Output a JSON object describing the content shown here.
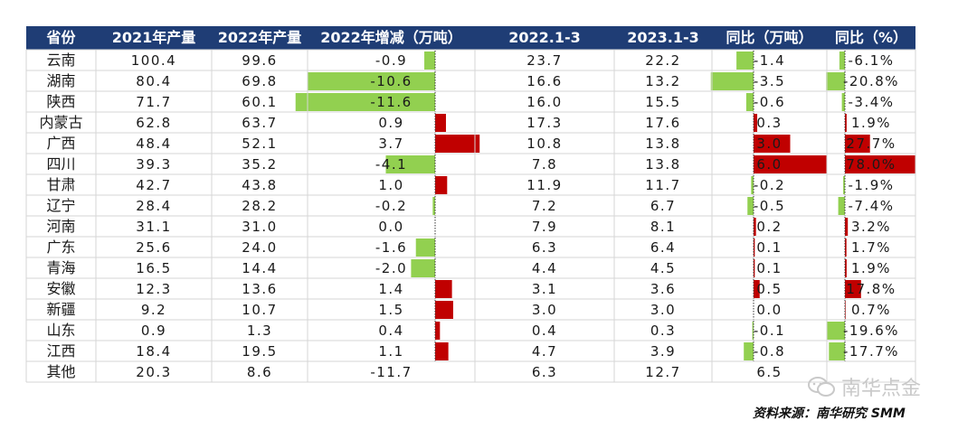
{
  "chart_data": {
    "type": "table",
    "columns": [
      "省份",
      "2021年产量",
      "2022年产量",
      "2022年增减（万吨）",
      "2022.1-3",
      "2023.1-3",
      "同比（万吨）",
      "同比（%）"
    ],
    "rows": [
      {
        "province": "云南",
        "y2021": "100.4",
        "y2022": "99.6",
        "change": "-0.9",
        "q2022": "23.7",
        "q2023": "22.2",
        "yoy_t": "-1.4",
        "yoy_pct": "-6.1%",
        "change_val": -0.9,
        "yoy_t_val": -1.4,
        "yoy_pct_val": -6.1
      },
      {
        "province": "湖南",
        "y2021": "80.4",
        "y2022": "69.8",
        "change": "-10.6",
        "q2022": "16.6",
        "q2023": "13.2",
        "yoy_t": "-3.5",
        "yoy_pct": "-20.8%",
        "change_val": -10.6,
        "yoy_t_val": -3.5,
        "yoy_pct_val": -20.8
      },
      {
        "province": "陕西",
        "y2021": "71.7",
        "y2022": "60.1",
        "change": "-11.6",
        "q2022": "16.0",
        "q2023": "15.5",
        "yoy_t": "-0.6",
        "yoy_pct": "-3.4%",
        "change_val": -11.6,
        "yoy_t_val": -0.6,
        "yoy_pct_val": -3.4
      },
      {
        "province": "内蒙古",
        "y2021": "62.8",
        "y2022": "63.7",
        "change": "0.9",
        "q2022": "17.3",
        "q2023": "17.6",
        "yoy_t": "0.3",
        "yoy_pct": "1.9%",
        "change_val": 0.9,
        "yoy_t_val": 0.3,
        "yoy_pct_val": 1.9
      },
      {
        "province": "广西",
        "y2021": "48.4",
        "y2022": "52.1",
        "change": "3.7",
        "q2022": "10.8",
        "q2023": "13.8",
        "yoy_t": "3.0",
        "yoy_pct": "27.7%",
        "change_val": 3.7,
        "yoy_t_val": 3.0,
        "yoy_pct_val": 27.7
      },
      {
        "province": "四川",
        "y2021": "39.3",
        "y2022": "35.2",
        "change": "-4.1",
        "q2022": "7.8",
        "q2023": "13.8",
        "yoy_t": "6.0",
        "yoy_pct": "78.0%",
        "change_val": -4.1,
        "yoy_t_val": 6.0,
        "yoy_pct_val": 78.0
      },
      {
        "province": "甘肃",
        "y2021": "42.7",
        "y2022": "43.8",
        "change": "1.0",
        "q2022": "11.9",
        "q2023": "11.7",
        "yoy_t": "-0.2",
        "yoy_pct": "-1.9%",
        "change_val": 1.0,
        "yoy_t_val": -0.2,
        "yoy_pct_val": -1.9
      },
      {
        "province": "辽宁",
        "y2021": "28.4",
        "y2022": "28.2",
        "change": "-0.2",
        "q2022": "7.2",
        "q2023": "6.7",
        "yoy_t": "-0.5",
        "yoy_pct": "-7.4%",
        "change_val": -0.2,
        "yoy_t_val": -0.5,
        "yoy_pct_val": -7.4
      },
      {
        "province": "河南",
        "y2021": "31.1",
        "y2022": "31.0",
        "change": "0.0",
        "q2022": "7.9",
        "q2023": "8.1",
        "yoy_t": "0.2",
        "yoy_pct": "3.2%",
        "change_val": 0.0,
        "yoy_t_val": 0.2,
        "yoy_pct_val": 3.2
      },
      {
        "province": "广东",
        "y2021": "25.6",
        "y2022": "24.0",
        "change": "-1.6",
        "q2022": "6.3",
        "q2023": "6.4",
        "yoy_t": "0.1",
        "yoy_pct": "1.7%",
        "change_val": -1.6,
        "yoy_t_val": 0.1,
        "yoy_pct_val": 1.7
      },
      {
        "province": "青海",
        "y2021": "16.5",
        "y2022": "14.4",
        "change": "-2.0",
        "q2022": "4.4",
        "q2023": "4.5",
        "yoy_t": "0.1",
        "yoy_pct": "1.9%",
        "change_val": -2.0,
        "yoy_t_val": 0.1,
        "yoy_pct_val": 1.9
      },
      {
        "province": "安徽",
        "y2021": "12.3",
        "y2022": "13.6",
        "change": "1.4",
        "q2022": "3.1",
        "q2023": "3.6",
        "yoy_t": "0.5",
        "yoy_pct": "17.8%",
        "change_val": 1.4,
        "yoy_t_val": 0.5,
        "yoy_pct_val": 17.8
      },
      {
        "province": "新疆",
        "y2021": "9.2",
        "y2022": "10.7",
        "change": "1.5",
        "q2022": "3.0",
        "q2023": "3.0",
        "yoy_t": "0.0",
        "yoy_pct": "0.7%",
        "change_val": 1.5,
        "yoy_t_val": 0.0,
        "yoy_pct_val": 0.7
      },
      {
        "province": "山东",
        "y2021": "0.9",
        "y2022": "1.3",
        "change": "0.4",
        "q2022": "0.4",
        "q2023": "0.3",
        "yoy_t": "-0.1",
        "yoy_pct": "-19.6%",
        "change_val": 0.4,
        "yoy_t_val": -0.1,
        "yoy_pct_val": -19.6
      },
      {
        "province": "江西",
        "y2021": "18.4",
        "y2022": "19.5",
        "change": "1.1",
        "q2022": "4.7",
        "q2023": "3.9",
        "yoy_t": "-0.8",
        "yoy_pct": "-17.7%",
        "change_val": 1.1,
        "yoy_t_val": -0.8,
        "yoy_pct_val": -17.7
      },
      {
        "province": "其他",
        "y2021": "20.3",
        "y2022": "8.6",
        "change": "-11.7",
        "q2022": "6.3",
        "q2023": "12.7",
        "yoy_t": "6.5",
        "yoy_pct": "",
        "change_val": null,
        "yoy_t_val": null,
        "yoy_pct_val": null
      }
    ],
    "colors": {
      "header_bg": "#1f3d75",
      "header_text": "#ffffff",
      "positive_bar": "#c00000",
      "negative_bar": "#92d050",
      "grid": "#d6d6d6"
    }
  },
  "source": "资料来源：南华研究 SMM",
  "watermark": {
    "text": "南华点金",
    "icon": "wechat-icon"
  }
}
